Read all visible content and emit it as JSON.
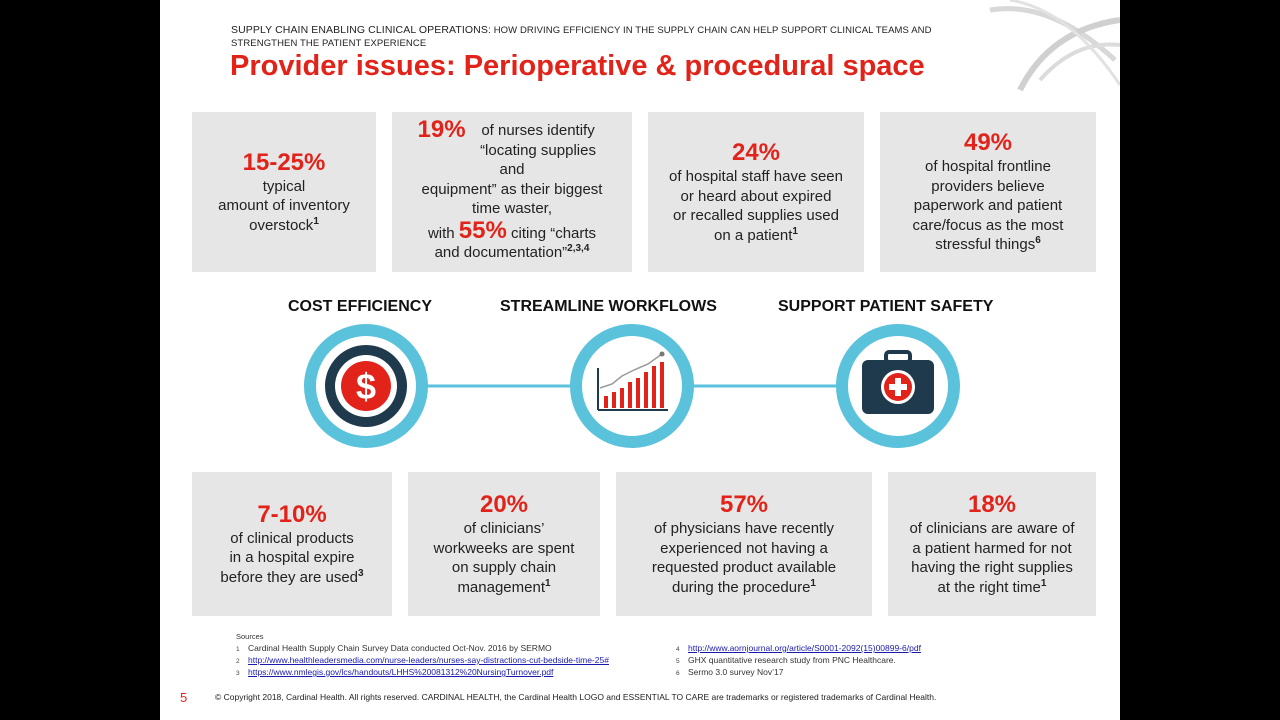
{
  "header": {
    "subtitle_bold": "Supply Chain enabling Clinical Operations:",
    "subtitle_rest": " How driving efficiency in the supply chain can help support clinical teams and strengthen the patient experience",
    "title": "Provider issues: Perioperative & procedural space"
  },
  "top_stats": [
    {
      "pct": "15-25%",
      "text": "typical\namount of inventory\noverstock",
      "sup": "1"
    },
    {
      "pct": "19%",
      "text_a": "of nurses identify\n“locating supplies and\nequipment” as their biggest\ntime waster,",
      "with": "with",
      "pct2": "55%",
      "text_b": "citing “charts\nand documentation”",
      "sup": "2,3,4"
    },
    {
      "pct": "24%",
      "text": "of hospital staff have seen\nor heard about expired\nor recalled supplies used\non a patient",
      "sup": "1"
    },
    {
      "pct": "49%",
      "text": "of hospital frontline\nproviders believe\npaperwork and patient\ncare/focus as the most\nstressful things",
      "sup": "6"
    }
  ],
  "pillars": [
    {
      "label": "COST EFFICIENCY",
      "icon": "dollar-icon"
    },
    {
      "label": "STREAMLINE WORKFLOWS",
      "icon": "bar-chart-icon"
    },
    {
      "label": "SUPPORT PATIENT SAFETY",
      "icon": "medical-kit-icon"
    }
  ],
  "bottom_stats": [
    {
      "pct": "7-10%",
      "text": "of clinical products\nin a hospital expire\nbefore they are used",
      "sup": "3"
    },
    {
      "pct": "20%",
      "text": "of clinicians’\nworkweeks are spent\non supply chain\nmanagement",
      "sup": "1"
    },
    {
      "pct": "57%",
      "text": "of physicians have recently\nexperienced not having a\nrequested product available\nduring the procedure",
      "sup": "1"
    },
    {
      "pct": "18%",
      "text": "of clinicians are aware of\na patient harmed for not\nhaving the right supplies\nat the right time",
      "sup": "1"
    }
  ],
  "sources": {
    "label": "Sources",
    "left": [
      {
        "n": "1",
        "text": "Cardinal Health Supply Chain Survey Data conducted Oct-Nov. 2016 by SERMO"
      },
      {
        "n": "2",
        "text": "http://www.healthleadersmedia.com/nurse-leaders/nurses-say-distractions-cut-bedside-time-25#",
        "link": true
      },
      {
        "n": "3",
        "text": "https://www.nmlegis.gov/lcs/handouts/LHHS%20081312%20NursingTurnover.pdf",
        "link": true
      }
    ],
    "right": [
      {
        "n": "4",
        "text": "http://www.aornjournal.org/article/S0001-2092(15)00899-6/pdf",
        "link": true
      },
      {
        "n": "5",
        "text": "GHX quantitative research study from PNC Healthcare."
      },
      {
        "n": "6",
        "text": "Sermo 3.0 survey Nov’17"
      }
    ]
  },
  "footer": {
    "page_number": "5",
    "copyright": "© Copyright 2018, Cardinal Health. All rights reserved. CARDINAL HEALTH, the Cardinal Health LOGO and ESSENTIAL TO CARE are trademarks or registered trademarks of Cardinal Health."
  },
  "colors": {
    "accent_red": "#e2231a",
    "teal": "#5bc2dc",
    "navy": "#1f3a4d",
    "box_gray": "#e6e6e6"
  }
}
